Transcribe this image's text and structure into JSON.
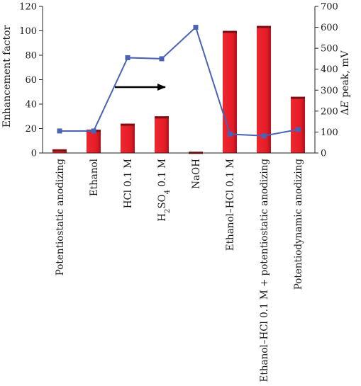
{
  "chart_data": {
    "type": "bar",
    "categories": [
      "Potentiostatic anodizing",
      "Ethanol",
      "HCl 0.1 M",
      "H2SO4 0.1 M",
      "NaOH",
      "Ethanol–HCl 0.1 M",
      "Ethanol–HCl 0.1 M + potentiostatic anodizing",
      "Potentiodynamic anodizing"
    ],
    "series": [
      {
        "type": "bar",
        "axis": "left",
        "color": "#e8202a",
        "values": [
          3,
          19,
          24,
          30,
          1,
          100,
          104,
          46
        ]
      },
      {
        "type": "line",
        "axis": "right",
        "color": "#4a63b6",
        "marker": "square",
        "values": [
          105,
          105,
          455,
          450,
          600,
          90,
          82,
          112
        ]
      }
    ],
    "ylabel": "Enhancement factor",
    "ylabel_right_prefix": "Δ",
    "ylabel_right_italic": "E",
    "ylabel_right_suffix": " peak, mV",
    "ylim": [
      0,
      120
    ],
    "yticks": [
      "0",
      "20",
      "40",
      "60",
      "80",
      "100",
      "120"
    ],
    "ylim_right": [
      0,
      700
    ],
    "yticks_right": [
      "0",
      "100",
      "200",
      "300",
      "400",
      "500",
      "600",
      "700"
    ],
    "annotations": [
      {
        "kind": "arrow",
        "direction": "right"
      }
    ],
    "grid": false,
    "legend": "none"
  }
}
